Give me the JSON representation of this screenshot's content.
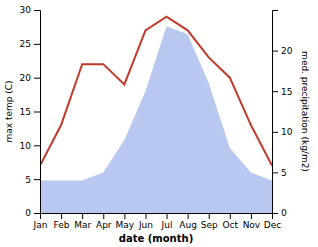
{
  "chart_data": {
    "type": "line",
    "categories": [
      "Jan",
      "Feb",
      "Mar",
      "Apr",
      "May",
      "Jun",
      "Jul",
      "Aug",
      "Sep",
      "Oct",
      "Nov",
      "Dec"
    ],
    "series": [
      {
        "type": "area",
        "axis": "y2",
        "color": "#b8c8f0",
        "values": [
          4,
          4,
          4,
          5,
          9,
          15,
          23,
          22,
          16,
          8,
          5,
          4
        ]
      },
      {
        "type": "line",
        "color": "#c0392b",
        "values": [
          7,
          13,
          22,
          22,
          19,
          27,
          29,
          27,
          23,
          20,
          13,
          7
        ]
      }
    ],
    "xlabel": "date (month)",
    "ylabel": "max temp (C)",
    "y2label": "med. precipitation (kg/m2)",
    "ylim": [
      0,
      30
    ],
    "yticks": [
      0,
      5,
      10,
      15,
      20,
      25,
      30
    ],
    "y2lim": [
      0,
      25
    ],
    "y2ticks": [
      0,
      5,
      10,
      15,
      20
    ],
    "grid": false
  }
}
